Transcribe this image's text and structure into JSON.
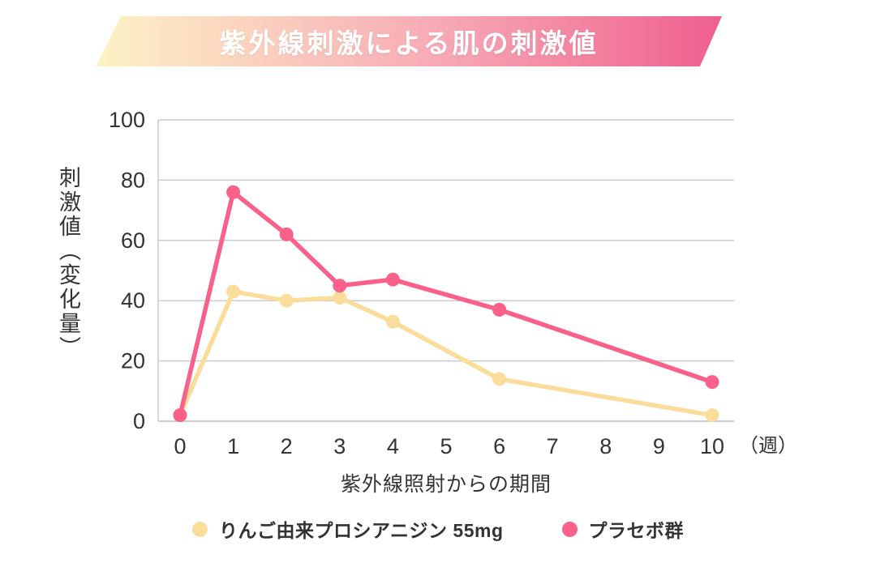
{
  "banner": {
    "gradient_left": "#fdf3c6",
    "gradient_mid": "#f7a9b5",
    "gradient_right": "#ef5f8e",
    "title_color": "#ffffff"
  },
  "chart_data": {
    "type": "line",
    "title": "紫外線刺激による肌の刺激値",
    "xlabel": "紫外線照射からの期間",
    "x_unit": "（週）",
    "ylabel": "刺激値（変化量）",
    "x_ticks": [
      0,
      1,
      2,
      3,
      4,
      5,
      6,
      7,
      8,
      9,
      10
    ],
    "y_ticks": [
      0,
      20,
      40,
      60,
      80,
      100
    ],
    "ylim": [
      0,
      100
    ],
    "grid": true,
    "grid_color": "#cccccc",
    "tick_color": "#333333",
    "legend_position": "bottom",
    "series": [
      {
        "name": "りんご由来プロシアニジン 55mg",
        "color": "#fadd9b",
        "x": [
          0,
          1,
          2,
          3,
          4,
          6,
          10
        ],
        "values": [
          2,
          43,
          40,
          41,
          33,
          14,
          2
        ]
      },
      {
        "name": "プラセボ群",
        "color": "#f9618b",
        "x": [
          0,
          1,
          2,
          3,
          4,
          6,
          10
        ],
        "values": [
          2,
          76,
          62,
          45,
          47,
          37,
          13
        ]
      }
    ]
  }
}
